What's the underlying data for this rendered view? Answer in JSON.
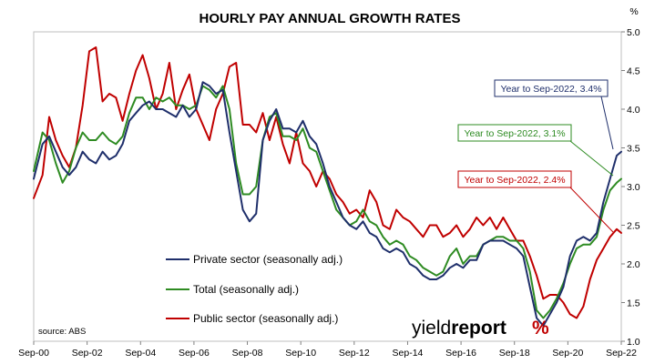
{
  "chart_data": {
    "type": "line",
    "title": "HOURLY PAY ANNUAL GROWTH RATES",
    "y_unit": "%",
    "ylim": [
      1.0,
      5.0
    ],
    "y_ticks": [
      "1.0",
      "1.5",
      "2.0",
      "2.5",
      "3.0",
      "3.5",
      "4.0",
      "4.5",
      "5.0"
    ],
    "x_range": [
      2000.67,
      2022.67
    ],
    "x_ticks": [
      "Sep-00",
      "Sep-02",
      "Sep-04",
      "Sep-06",
      "Sep-08",
      "Sep-10",
      "Sep-12",
      "Sep-14",
      "Sep-16",
      "Sep-18",
      "Sep-20",
      "Sep-22"
    ],
    "grid": "none",
    "legend_position": "lower-left",
    "source": "source: ABS",
    "logo": {
      "word_thin": "yield",
      "word_bold": "report",
      "symbol": "%"
    },
    "series": [
      {
        "name": "Private sector (seasonally adj.)",
        "color": "#1f2f6b",
        "x": [
          2000.67,
          2001.0,
          2001.25,
          2001.5,
          2001.75,
          2002.0,
          2002.25,
          2002.5,
          2002.75,
          2003.0,
          2003.25,
          2003.5,
          2003.75,
          2004.0,
          2004.25,
          2004.5,
          2004.75,
          2005.0,
          2005.25,
          2005.5,
          2005.75,
          2006.0,
          2006.25,
          2006.5,
          2006.75,
          2007.0,
          2007.25,
          2007.5,
          2007.75,
          2008.0,
          2008.25,
          2008.5,
          2008.75,
          2009.0,
          2009.25,
          2009.5,
          2009.75,
          2010.0,
          2010.25,
          2010.5,
          2010.75,
          2011.0,
          2011.25,
          2011.5,
          2011.75,
          2012.0,
          2012.25,
          2012.5,
          2012.75,
          2013.0,
          2013.25,
          2013.5,
          2013.75,
          2014.0,
          2014.25,
          2014.5,
          2014.75,
          2015.0,
          2015.25,
          2015.5,
          2015.75,
          2016.0,
          2016.25,
          2016.5,
          2016.75,
          2017.0,
          2017.25,
          2017.5,
          2017.75,
          2018.0,
          2018.25,
          2018.5,
          2018.75,
          2019.0,
          2019.25,
          2019.5,
          2019.75,
          2020.0,
          2020.25,
          2020.5,
          2020.75,
          2021.0,
          2021.25,
          2021.5,
          2021.75,
          2022.0,
          2022.25,
          2022.5,
          2022.67
        ],
        "values": [
          3.1,
          3.55,
          3.65,
          3.45,
          3.25,
          3.15,
          3.25,
          3.45,
          3.35,
          3.3,
          3.45,
          3.35,
          3.4,
          3.55,
          3.85,
          3.95,
          4.05,
          4.1,
          4.0,
          4.0,
          3.95,
          3.9,
          4.05,
          3.9,
          4.0,
          4.35,
          4.3,
          4.2,
          4.25,
          3.7,
          3.2,
          2.7,
          2.55,
          2.65,
          3.6,
          3.85,
          4.0,
          3.75,
          3.75,
          3.7,
          3.85,
          3.65,
          3.55,
          3.3,
          3.0,
          2.8,
          2.6,
          2.5,
          2.45,
          2.55,
          2.4,
          2.35,
          2.2,
          2.15,
          2.2,
          2.15,
          2.0,
          1.95,
          1.85,
          1.8,
          1.8,
          1.85,
          1.95,
          2.0,
          1.95,
          2.05,
          2.05,
          2.25,
          2.3,
          2.3,
          2.3,
          2.25,
          2.2,
          2.1,
          1.7,
          1.3,
          1.2,
          1.35,
          1.5,
          1.7,
          2.1,
          2.3,
          2.35,
          2.3,
          2.4,
          2.8,
          3.1,
          3.4,
          3.45
        ]
      },
      {
        "name": "Total (seasonally adj.)",
        "color": "#2e8b22",
        "x": [
          2000.67,
          2001.0,
          2001.25,
          2001.5,
          2001.75,
          2002.0,
          2002.25,
          2002.5,
          2002.75,
          2003.0,
          2003.25,
          2003.5,
          2003.75,
          2004.0,
          2004.25,
          2004.5,
          2004.75,
          2005.0,
          2005.25,
          2005.5,
          2005.75,
          2006.0,
          2006.25,
          2006.5,
          2006.75,
          2007.0,
          2007.25,
          2007.5,
          2007.75,
          2008.0,
          2008.25,
          2008.5,
          2008.75,
          2009.0,
          2009.25,
          2009.5,
          2009.75,
          2010.0,
          2010.25,
          2010.5,
          2010.75,
          2011.0,
          2011.25,
          2011.5,
          2011.75,
          2012.0,
          2012.25,
          2012.5,
          2012.75,
          2013.0,
          2013.25,
          2013.5,
          2013.75,
          2014.0,
          2014.25,
          2014.5,
          2014.75,
          2015.0,
          2015.25,
          2015.5,
          2015.75,
          2016.0,
          2016.25,
          2016.5,
          2016.75,
          2017.0,
          2017.25,
          2017.5,
          2017.75,
          2018.0,
          2018.25,
          2018.5,
          2018.75,
          2019.0,
          2019.25,
          2019.5,
          2019.75,
          2020.0,
          2020.25,
          2020.5,
          2020.75,
          2021.0,
          2021.25,
          2021.5,
          2021.75,
          2022.0,
          2022.25,
          2022.5,
          2022.67
        ],
        "values": [
          3.2,
          3.7,
          3.6,
          3.3,
          3.05,
          3.2,
          3.5,
          3.7,
          3.6,
          3.6,
          3.7,
          3.6,
          3.55,
          3.65,
          3.95,
          4.15,
          4.15,
          4.0,
          4.15,
          4.1,
          4.15,
          4.05,
          4.05,
          4.0,
          4.05,
          4.3,
          4.25,
          4.15,
          4.3,
          4.0,
          3.3,
          2.9,
          2.9,
          3.0,
          3.6,
          3.9,
          3.95,
          3.65,
          3.65,
          3.6,
          3.75,
          3.5,
          3.45,
          3.2,
          2.95,
          2.7,
          2.6,
          2.5,
          2.55,
          2.7,
          2.55,
          2.5,
          2.35,
          2.25,
          2.3,
          2.25,
          2.1,
          2.05,
          1.95,
          1.9,
          1.85,
          1.9,
          2.1,
          2.2,
          2.0,
          2.1,
          2.1,
          2.25,
          2.3,
          2.35,
          2.35,
          2.3,
          2.3,
          2.2,
          1.9,
          1.4,
          1.3,
          1.4,
          1.55,
          1.75,
          2.0,
          2.2,
          2.25,
          2.25,
          2.35,
          2.7,
          2.95,
          3.05,
          3.1
        ]
      },
      {
        "name": "Public sector (seasonally adj.)",
        "color": "#c00000",
        "x": [
          2000.67,
          2001.0,
          2001.25,
          2001.5,
          2001.75,
          2002.0,
          2002.25,
          2002.5,
          2002.75,
          2003.0,
          2003.25,
          2003.5,
          2003.75,
          2004.0,
          2004.25,
          2004.5,
          2004.75,
          2005.0,
          2005.25,
          2005.5,
          2005.75,
          2006.0,
          2006.25,
          2006.5,
          2006.75,
          2007.0,
          2007.25,
          2007.5,
          2007.75,
          2008.0,
          2008.25,
          2008.5,
          2008.75,
          2009.0,
          2009.25,
          2009.5,
          2009.75,
          2010.0,
          2010.25,
          2010.5,
          2010.75,
          2011.0,
          2011.25,
          2011.5,
          2011.75,
          2012.0,
          2012.25,
          2012.5,
          2012.75,
          2013.0,
          2013.25,
          2013.5,
          2013.75,
          2014.0,
          2014.25,
          2014.5,
          2014.75,
          2015.0,
          2015.25,
          2015.5,
          2015.75,
          2016.0,
          2016.25,
          2016.5,
          2016.75,
          2017.0,
          2017.25,
          2017.5,
          2017.75,
          2018.0,
          2018.25,
          2018.5,
          2018.75,
          2019.0,
          2019.25,
          2019.5,
          2019.75,
          2020.0,
          2020.25,
          2020.5,
          2020.75,
          2021.0,
          2021.25,
          2021.5,
          2021.75,
          2022.0,
          2022.25,
          2022.5,
          2022.67
        ],
        "values": [
          2.85,
          3.15,
          3.9,
          3.6,
          3.4,
          3.25,
          3.5,
          4.05,
          4.75,
          4.8,
          4.1,
          4.2,
          4.15,
          3.85,
          4.2,
          4.5,
          4.7,
          4.4,
          4.0,
          4.2,
          4.6,
          4.0,
          4.25,
          4.45,
          4.0,
          3.8,
          3.6,
          4.0,
          4.2,
          4.55,
          4.6,
          3.8,
          3.8,
          3.7,
          3.95,
          3.6,
          3.9,
          3.55,
          3.3,
          3.7,
          3.3,
          3.2,
          3.0,
          3.2,
          3.1,
          2.9,
          2.8,
          2.65,
          2.7,
          2.6,
          2.95,
          2.8,
          2.5,
          2.45,
          2.7,
          2.6,
          2.55,
          2.45,
          2.35,
          2.5,
          2.5,
          2.35,
          2.4,
          2.5,
          2.35,
          2.45,
          2.6,
          2.5,
          2.6,
          2.45,
          2.6,
          2.45,
          2.3,
          2.3,
          2.1,
          1.85,
          1.55,
          1.6,
          1.6,
          1.5,
          1.35,
          1.3,
          1.45,
          1.8,
          2.05,
          2.2,
          2.35,
          2.45,
          2.4
        ]
      }
    ],
    "annotations": [
      {
        "label": "Year to Sep-2022, 3.4%",
        "series": "Private sector (seasonally adj.)",
        "color": "#1f2f6b",
        "box_position": "upper-right"
      },
      {
        "label": "Year to Sep-2022, 3.1%",
        "series": "Total (seasonally adj.)",
        "color": "#2e8b22",
        "box_position": "right"
      },
      {
        "label": "Year to Sep-2022, 2.4%",
        "series": "Public sector (seasonally adj.)",
        "color": "#c00000",
        "box_position": "right"
      }
    ]
  }
}
